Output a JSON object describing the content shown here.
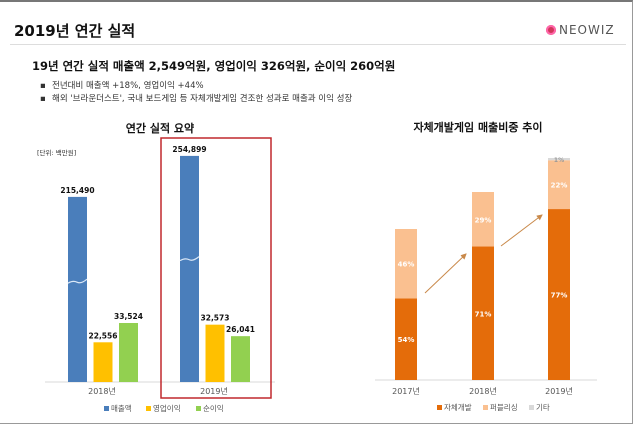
{
  "header": {
    "title": "2019년 연간 실적",
    "logo": "NEOWIZ"
  },
  "summary": {
    "headline": "19년 연간 실적 매출액 2,549억원, 영업이익 326억원, 순이익 260억원",
    "bullets": [
      "전년대비 매출액 +18%, 영업이익 +44%",
      "해외 '브라운더스트', 국내 보드게임 등 자체개발게임 견조한 성과로 매출과 이익 성장"
    ]
  },
  "chart_data": [
    {
      "type": "bar",
      "title": "연간 실적 요약",
      "unit_label": "[단위: 백만원]",
      "categories": [
        "2018년",
        "2019년"
      ],
      "axis_break": true,
      "highlight": "2019년",
      "series": [
        {
          "name": "매출액",
          "color": "#4a7ebb",
          "values": [
            215490,
            254899
          ],
          "labels": [
            "215,490",
            "254,899"
          ]
        },
        {
          "name": "영업이익",
          "color": "#ffc000",
          "values": [
            22556,
            32573
          ],
          "labels": [
            "22,556",
            "32,573"
          ]
        },
        {
          "name": "순이익",
          "color": "#92d050",
          "values": [
            33524,
            26041
          ],
          "labels": [
            "33,524",
            "26,041"
          ]
        }
      ]
    },
    {
      "type": "bar",
      "stacked": true,
      "title": "자체개발게임 매출비중 추이",
      "categories": [
        "2017년",
        "2018년",
        "2019년"
      ],
      "series": [
        {
          "name": "자체개발",
          "color": "#e46c0a",
          "values": [
            54,
            71,
            77
          ],
          "labels": [
            "54%",
            "71%",
            "77%"
          ]
        },
        {
          "name": "퍼블리싱",
          "color": "#fac090",
          "values": [
            46,
            29,
            22
          ],
          "labels": [
            "46%",
            "29%",
            "22%"
          ]
        },
        {
          "name": "기타",
          "color": "#d9d9d9",
          "values": [
            0,
            0,
            1
          ],
          "labels": [
            "",
            "",
            "1%"
          ]
        }
      ]
    }
  ]
}
